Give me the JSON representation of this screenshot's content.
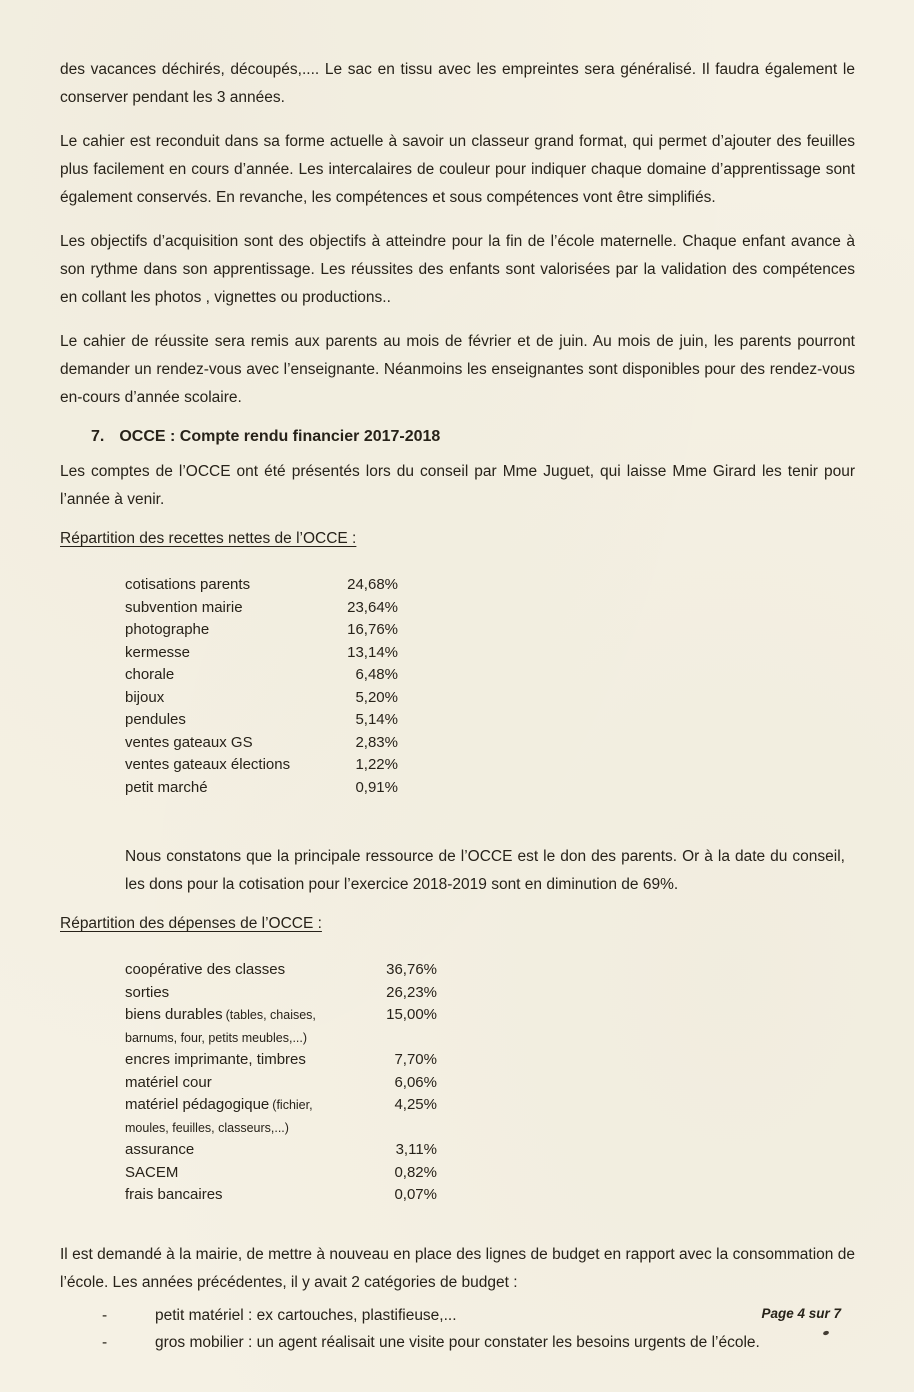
{
  "document": {
    "background_color": "#f5f1e4",
    "text_color": "#272219",
    "footer": "Page 4 sur 7",
    "paragraphs": {
      "p1": "des vacances déchirés, découpés,.... Le sac en tissu avec les empreintes sera généralisé. Il faudra également le conserver pendant les 3 années.",
      "p2": "Le cahier est reconduit dans sa forme actuelle à savoir un classeur grand format, qui permet d’ajouter des feuilles plus facilement en cours d’année. Les intercalaires de couleur pour indiquer chaque domaine d’apprentissage sont également conservés. En revanche, les compétences et sous compétences vont être simplifiés.",
      "p3": "Les objectifs d’acquisition sont des objectifs à atteindre pour la fin de l’école maternelle. Chaque enfant avance à son rythme dans son apprentissage. Les réussites des enfants sont valorisées par la validation des compétences en collant les photos , vignettes ou productions..",
      "p4": "Le cahier de réussite sera remis aux parents au mois de février et de juin. Au mois de juin, les parents pourront demander un rendez-vous avec l’enseignante. Néanmoins les enseignantes sont disponibles pour des rendez-vous en-cours d’année scolaire."
    },
    "section7": {
      "number": "7.",
      "title": "OCCE : Compte rendu financier 2017-2018",
      "intro": "Les comptes de l’OCCE ont été présentés lors du conseil par Mme Juguet, qui laisse Mme Girard les tenir pour l’année à venir.",
      "recettes_heading": "Répartition des recettes nettes de l’OCCE :",
      "recettes": [
        {
          "label": "cotisations parents",
          "value": "24,68%"
        },
        {
          "label": "subvention mairie",
          "value": "23,64%"
        },
        {
          "label": "photographe",
          "value": "16,76%"
        },
        {
          "label": "kermesse",
          "value": "13,14%"
        },
        {
          "label": "chorale",
          "value": "6,48%"
        },
        {
          "label": "bijoux",
          "value": "5,20%"
        },
        {
          "label": "pendules",
          "value": "5,14%"
        },
        {
          "label": "ventes gateaux GS",
          "value": "2,83%"
        },
        {
          "label": "ventes gateaux élections",
          "value": "1,22%"
        },
        {
          "label": "petit marché",
          "value": "0,91%"
        }
      ],
      "note": "Nous constatons que la principale ressource de l’OCCE est le don des parents. Or à la date du conseil, les dons pour la cotisation pour l’exercice 2018-2019 sont en diminution de 69%.",
      "depenses_heading": "Répartition des dépenses de l’OCCE :",
      "depenses": [
        {
          "label": "coopérative des classes",
          "value": "36,76%"
        },
        {
          "label": "sorties",
          "value": "26,23%"
        },
        {
          "label": "biens durables",
          "detail1": "(tables, chaises,",
          "detail2": "barnums, four, petits meubles,...)",
          "value": "15,00%"
        },
        {
          "label": "encres imprimante, timbres",
          "value": "7,70%"
        },
        {
          "label": "matériel cour",
          "value": "6,06%"
        },
        {
          "label": "matériel pédagogique",
          "detail1": "(fichier,",
          "detail2": "moules, feuilles, classeurs,...)",
          "value": "4,25%"
        },
        {
          "label": "assurance",
          "value": "3,11%"
        },
        {
          "label": "SACEM",
          "value": "0,82%"
        },
        {
          "label": "frais bancaires",
          "value": "0,07%"
        }
      ],
      "budget_intro": "Il est demandé à la mairie, de mettre à nouveau en place des lignes de budget en rapport avec la consommation de l’école. Les années précédentes, il y avait 2 catégories de budget :",
      "bullets": [
        {
          "dash": "-",
          "text": "petit matériel : ex cartouches, plastifieuse,..."
        },
        {
          "dash": "-",
          "text": "gros mobilier : un agent réalisait une visite pour constater les besoins urgents de l’école."
        }
      ]
    }
  }
}
